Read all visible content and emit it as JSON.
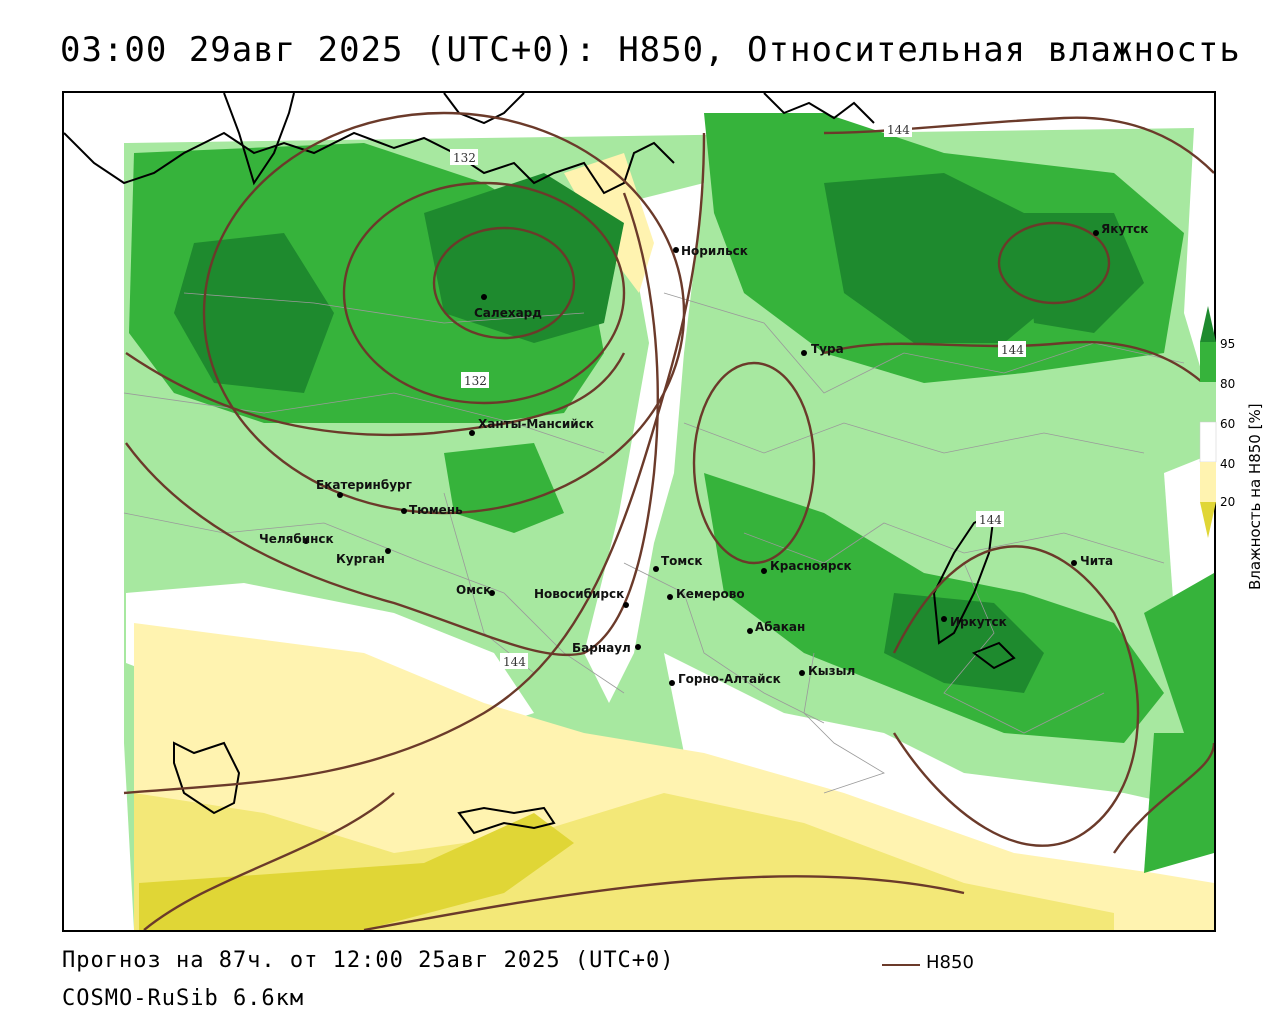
{
  "header": {
    "title": "03:00 29авг 2025 (UTC+0): H850, Относительная влажность"
  },
  "footer": {
    "forecast": "Прогноз на 87ч. от 12:00 25авг 2025 (UTC+0)",
    "model": "COSMO-RuSib 6.6км",
    "legend_label": "H850"
  },
  "colorbar": {
    "title": "Влажность на H850 [%]",
    "ticks": [
      "95",
      "80",
      "60",
      "40",
      "20"
    ],
    "colors": {
      "c95": "#1e8a2e",
      "c80": "#36b33b",
      "c60": "#a7e8a0",
      "c40": "#ffffff",
      "c20": "#fff3b0",
      "c0": "#e0d636"
    }
  },
  "map": {
    "isolines": [
      {
        "label": "132"
      },
      {
        "label": "132"
      },
      {
        "label": "144"
      },
      {
        "label": "144"
      },
      {
        "label": "144"
      },
      {
        "label": "144"
      }
    ],
    "cities": [
      {
        "name": "Норильск"
      },
      {
        "name": "Якутск"
      },
      {
        "name": "Салехард"
      },
      {
        "name": "Тура"
      },
      {
        "name": "Ханты-Мансийск"
      },
      {
        "name": "Екатеринбург"
      },
      {
        "name": "Тюмень"
      },
      {
        "name": "Челябинск"
      },
      {
        "name": "Курган"
      },
      {
        "name": "Омск"
      },
      {
        "name": "Новосибирск"
      },
      {
        "name": "Томск"
      },
      {
        "name": "Кемерово"
      },
      {
        "name": "Красноярск"
      },
      {
        "name": "Барнаул"
      },
      {
        "name": "Абакан"
      },
      {
        "name": "Горно-Алтайск"
      },
      {
        "name": "Кызыл"
      },
      {
        "name": "Иркутск"
      },
      {
        "name": "Чита"
      }
    ]
  }
}
